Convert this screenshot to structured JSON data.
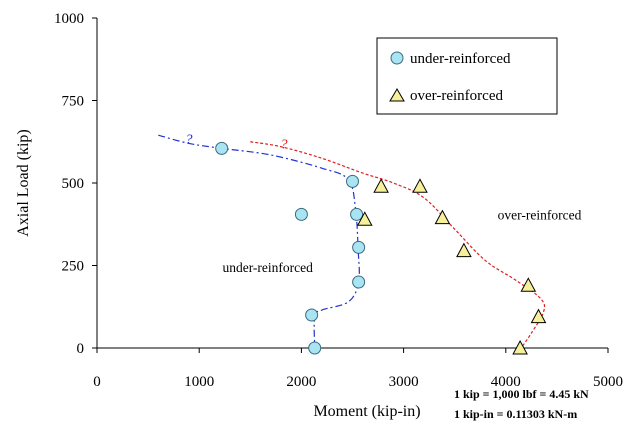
{
  "chart_data": {
    "type": "scatter",
    "xlabel": "Moment (kip-in)",
    "ylabel": "Axial Load (kip)",
    "xlim": [
      0,
      5000
    ],
    "ylim": [
      0,
      1000
    ],
    "xticks": [
      "0",
      "1000",
      "2000",
      "3000",
      "4000",
      "5000"
    ],
    "yticks": [
      "0",
      "250",
      "500",
      "750",
      "1000"
    ],
    "grid": false,
    "legend_placement": "top-right",
    "series": [
      {
        "name": "under-reinforced",
        "marker": "circle",
        "color": "#a8e4f2",
        "points": [
          [
            1220,
            605
          ],
          [
            2000,
            405
          ],
          [
            2500,
            505
          ],
          [
            2540,
            405
          ],
          [
            2560,
            305
          ],
          [
            2560,
            200
          ],
          [
            2100,
            100
          ],
          [
            2130,
            0
          ]
        ]
      },
      {
        "name": "over-reinforced",
        "marker": "triangle",
        "color": "#f7f09a",
        "points": [
          [
            2780,
            490
          ],
          [
            3160,
            490
          ],
          [
            2620,
            390
          ],
          [
            3380,
            395
          ],
          [
            3590,
            295
          ],
          [
            4220,
            190
          ],
          [
            4320,
            95
          ],
          [
            4140,
            0
          ]
        ]
      }
    ],
    "boundaries": [
      {
        "name": "under-reinforced",
        "color": "#2233cc",
        "dash": "dashdot",
        "points": [
          [
            600,
            645
          ],
          [
            900,
            620
          ],
          [
            1220,
            605
          ],
          [
            1700,
            585
          ],
          [
            2200,
            545
          ],
          [
            2460,
            510
          ],
          [
            2530,
            420
          ],
          [
            2555,
            300
          ],
          [
            2560,
            200
          ],
          [
            2460,
            140
          ],
          [
            2200,
            115
          ],
          [
            2130,
            95
          ],
          [
            2130,
            0
          ]
        ]
      },
      {
        "name": "over-reinforced",
        "color": "#e02020",
        "dash": "dotted",
        "points": [
          [
            1500,
            625
          ],
          [
            1800,
            610
          ],
          [
            2200,
            575
          ],
          [
            2600,
            530
          ],
          [
            2900,
            500
          ],
          [
            3200,
            455
          ],
          [
            3500,
            360
          ],
          [
            3800,
            265
          ],
          [
            4100,
            205
          ],
          [
            4340,
            150
          ],
          [
            4370,
            110
          ],
          [
            4250,
            45
          ],
          [
            4150,
            0
          ]
        ]
      }
    ],
    "annotations": [
      {
        "text": "?",
        "x": 900,
        "y": 620
      },
      {
        "text": "?",
        "x": 1830,
        "y": 605
      },
      {
        "text": "under-reinforced",
        "x": 1670,
        "y": 230
      },
      {
        "text": "over-reinforced",
        "x": 4330,
        "y": 390
      }
    ],
    "notes": [
      "1 kip = 1,000 lbf = 4.45 kN",
      "1 kip-in = 0.11303 kN-m"
    ]
  }
}
